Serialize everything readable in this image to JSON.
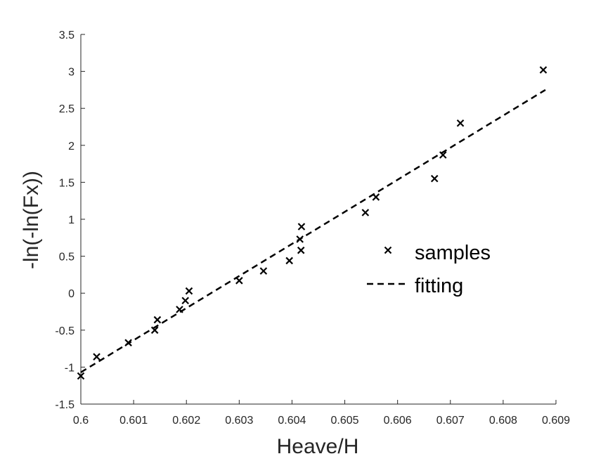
{
  "chart_data": {
    "type": "scatter",
    "xlabel": "Heave/H",
    "ylabel": "-ln(-ln(Fx))",
    "xlim": [
      0.6,
      0.609
    ],
    "ylim": [
      -1.5,
      3.5
    ],
    "xticks": [
      0.6,
      0.601,
      0.602,
      0.603,
      0.604,
      0.605,
      0.606,
      0.607,
      0.608,
      0.609
    ],
    "xtick_labels": [
      "0.6",
      "0.601",
      "0.602",
      "0.603",
      "0.604",
      "0.605",
      "0.606",
      "0.607",
      "0.608",
      "0.609"
    ],
    "yticks": [
      -1.5,
      -1,
      -0.5,
      0,
      0.5,
      1,
      1.5,
      2,
      2.5,
      3,
      3.5
    ],
    "ytick_labels": [
      "-1.5",
      "-1",
      "-0.5",
      "0",
      "0.5",
      "1",
      "1.5",
      "2",
      "2.5",
      "3",
      "3.5"
    ],
    "grid": false,
    "legend_position": "center-right",
    "series": [
      {
        "name": "samples",
        "kind": "markers",
        "marker": "x",
        "color": "#000000",
        "points": [
          [
            0.6,
            -1.12
          ],
          [
            0.6003,
            -0.86
          ],
          [
            0.6009,
            -0.67
          ],
          [
            0.6014,
            -0.5
          ],
          [
            0.60145,
            -0.36
          ],
          [
            0.60187,
            -0.22
          ],
          [
            0.60198,
            -0.1
          ],
          [
            0.60205,
            0.03
          ],
          [
            0.603,
            0.17
          ],
          [
            0.60346,
            0.3
          ],
          [
            0.60395,
            0.44
          ],
          [
            0.60415,
            0.73
          ],
          [
            0.60417,
            0.58
          ],
          [
            0.60418,
            0.9
          ],
          [
            0.60539,
            1.09
          ],
          [
            0.60559,
            1.3
          ],
          [
            0.6067,
            1.55
          ],
          [
            0.60686,
            1.87
          ],
          [
            0.60719,
            2.3
          ],
          [
            0.60876,
            3.02
          ]
        ]
      },
      {
        "name": "fitting",
        "kind": "line",
        "dash": "dashed",
        "color": "#000000",
        "x": [
          0.6,
          0.6088
        ],
        "y": [
          -1.07,
          2.75
        ]
      }
    ]
  }
}
